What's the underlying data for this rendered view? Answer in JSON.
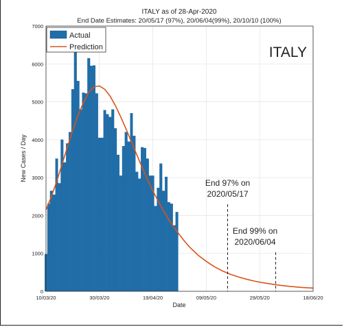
{
  "chart_data": {
    "type": "bar",
    "title": "ITALY as of 28-Apr-2020",
    "subtitle": "End Date Estimates: 20/05/17 (97%), 20/06/04(99%), 20/10/10 (100%)",
    "country_label": "ITALY",
    "xlabel": "Date",
    "ylabel": "New Cases / Day",
    "ylim": [
      0,
      7000
    ],
    "yticks": [
      0,
      1000,
      2000,
      3000,
      4000,
      5000,
      6000,
      7000
    ],
    "xlim": [
      "2020-03-10",
      "2020-06-18"
    ],
    "xticks": [
      "10/03/20",
      "30/03/20",
      "19/04/20",
      "09/05/20",
      "29/05/20",
      "18/06/20"
    ],
    "grid": true,
    "legend_position": "top-left",
    "x": [
      "2020-03-10",
      "2020-03-11",
      "2020-03-12",
      "2020-03-13",
      "2020-03-14",
      "2020-03-15",
      "2020-03-16",
      "2020-03-17",
      "2020-03-18",
      "2020-03-19",
      "2020-03-20",
      "2020-03-21",
      "2020-03-22",
      "2020-03-23",
      "2020-03-24",
      "2020-03-25",
      "2020-03-26",
      "2020-03-27",
      "2020-03-28",
      "2020-03-29",
      "2020-03-30",
      "2020-03-31",
      "2020-04-01",
      "2020-04-02",
      "2020-04-03",
      "2020-04-04",
      "2020-04-05",
      "2020-04-06",
      "2020-04-07",
      "2020-04-08",
      "2020-04-09",
      "2020-04-10",
      "2020-04-11",
      "2020-04-12",
      "2020-04-13",
      "2020-04-14",
      "2020-04-15",
      "2020-04-16",
      "2020-04-17",
      "2020-04-18",
      "2020-04-19",
      "2020-04-20",
      "2020-04-21",
      "2020-04-22",
      "2020-04-23",
      "2020-04-24",
      "2020-04-25",
      "2020-04-26",
      "2020-04-27",
      "2020-04-28"
    ],
    "series": [
      {
        "name": "Actual",
        "color": "#1f6eaa",
        "values": [
          980,
          2310,
          2650,
          2550,
          3500,
          2850,
          4000,
          3400,
          3900,
          4200,
          5330,
          6550,
          5550,
          4800,
          5240,
          5220,
          6150,
          5950,
          5960,
          5220,
          4050,
          4050,
          4780,
          4670,
          4600,
          4800,
          4300,
          3600,
          3050,
          3830,
          4200,
          3950,
          4700,
          4100,
          3150,
          2970,
          3800,
          3780,
          3500,
          3050,
          3050,
          2250,
          2730,
          3370,
          2650,
          3020,
          2350,
          2310,
          1740,
          2090
        ]
      },
      {
        "name": "Prediction",
        "color": "#d95319",
        "x": [
          "2020-03-10",
          "2020-03-12",
          "2020-03-14",
          "2020-03-16",
          "2020-03-18",
          "2020-03-20",
          "2020-03-22",
          "2020-03-24",
          "2020-03-26",
          "2020-03-28",
          "2020-03-30",
          "2020-04-01",
          "2020-04-03",
          "2020-04-05",
          "2020-04-07",
          "2020-04-09",
          "2020-04-11",
          "2020-04-13",
          "2020-04-15",
          "2020-04-17",
          "2020-04-19",
          "2020-04-21",
          "2020-04-23",
          "2020-04-25",
          "2020-04-27",
          "2020-04-29",
          "2020-05-01",
          "2020-05-03",
          "2020-05-06",
          "2020-05-09",
          "2020-05-12",
          "2020-05-15",
          "2020-05-18",
          "2020-05-21",
          "2020-05-24",
          "2020-05-27",
          "2020-05-30",
          "2020-06-02",
          "2020-06-05",
          "2020-06-08",
          "2020-06-11",
          "2020-06-14",
          "2020-06-18"
        ],
        "values": [
          2150,
          2500,
          2900,
          3350,
          3800,
          4250,
          4650,
          4980,
          5250,
          5400,
          5420,
          5330,
          5150,
          4900,
          4600,
          4280,
          3940,
          3600,
          3270,
          2950,
          2650,
          2380,
          2120,
          1890,
          1680,
          1490,
          1310,
          1150,
          950,
          790,
          650,
          540,
          450,
          380,
          320,
          270,
          230,
          195,
          165,
          140,
          120,
          102,
          85
        ]
      }
    ],
    "annotations": [
      {
        "date": "2020-05-17",
        "line1": "End 97% on",
        "line2": "2020/05/17"
      },
      {
        "date": "2020-06-04",
        "line1": "End 99% on",
        "line2": "2020/06/04"
      }
    ]
  }
}
